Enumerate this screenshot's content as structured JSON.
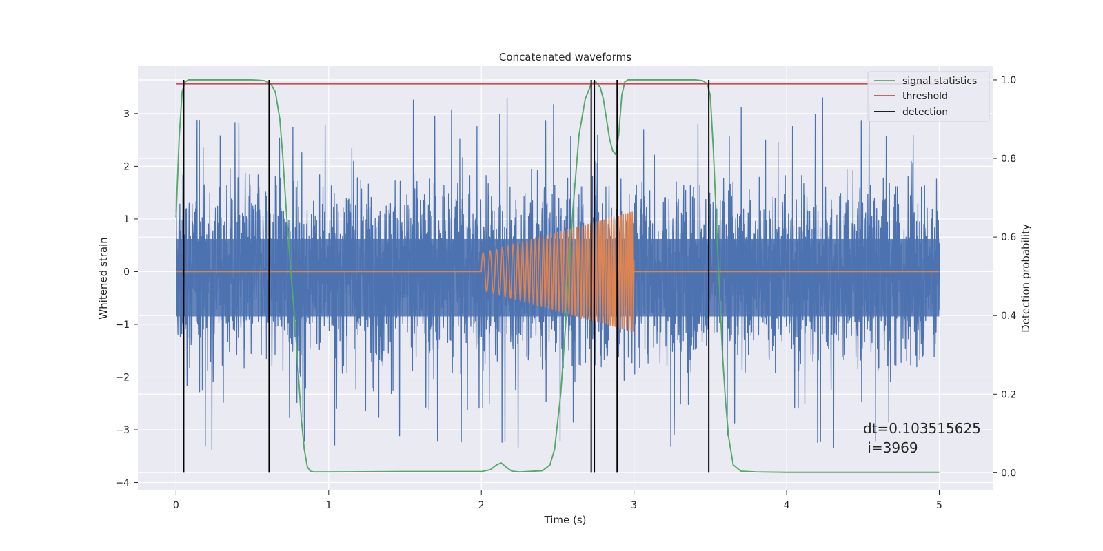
{
  "chart_data": {
    "type": "line",
    "title": "Concatenated waveforms",
    "xlabel": "Time (s)",
    "ylabel": "Whitened strain",
    "y2label": "Detection probability",
    "xlim": [
      -0.25,
      5.35
    ],
    "ylim": [
      -4.15,
      3.9
    ],
    "y2lim": [
      -0.045,
      1.035
    ],
    "xticks": [
      0,
      1,
      2,
      3,
      4,
      5
    ],
    "yticks": [
      -4,
      -3,
      -2,
      -1,
      0,
      1,
      2,
      3
    ],
    "y2ticks": [
      0.0,
      0.2,
      0.4,
      0.6,
      0.8,
      1.0
    ],
    "xtick_labels": [
      "0",
      "1",
      "2",
      "3",
      "4",
      "5"
    ],
    "ytick_labels": [
      "−4",
      "−3",
      "−2",
      "−1",
      "0",
      "1",
      "2",
      "3"
    ],
    "y2tick_labels": [
      "0.0",
      "0.2",
      "0.4",
      "0.6",
      "0.8",
      "1.0"
    ],
    "grid": true,
    "legend_position": "top-right",
    "legend": [
      {
        "name": "signal statistics",
        "color": "#55a868"
      },
      {
        "name": "threshold",
        "color": "#c44e52"
      },
      {
        "name": "detection",
        "color": "#000000"
      }
    ],
    "noise": {
      "x_range": [
        0,
        5
      ],
      "color": "#4c72b0",
      "core_band": [
        -0.85,
        0.62
      ],
      "extreme_max": 3.6,
      "extreme_min": -3.75
    },
    "chirp": {
      "x_range": [
        2.0,
        3.0
      ],
      "color": "#dd8452",
      "amplitude_start": 0.35,
      "amplitude_end": 1.15,
      "freq_start": 20,
      "freq_end": 70
    },
    "signal_statistics": {
      "color": "#55a868",
      "x": [
        0.0,
        0.02,
        0.04,
        0.06,
        0.08,
        0.1,
        0.15,
        0.3,
        0.5,
        0.58,
        0.62,
        0.65,
        0.68,
        0.7,
        0.72,
        0.75,
        0.78,
        0.8,
        0.82,
        0.84,
        0.86,
        0.88,
        0.9,
        1.0,
        1.5,
        2.0,
        2.06,
        2.1,
        2.13,
        2.16,
        2.2,
        2.25,
        2.4,
        2.45,
        2.48,
        2.52,
        2.56,
        2.6,
        2.64,
        2.68,
        2.72,
        2.75,
        2.78,
        2.8,
        2.82,
        2.84,
        2.86,
        2.88,
        2.9,
        2.92,
        2.94,
        2.96,
        3.0,
        3.2,
        3.4,
        3.45,
        3.48,
        3.5,
        3.52,
        3.55,
        3.58,
        3.6,
        3.62,
        3.65,
        3.7,
        3.8,
        4.0,
        4.5,
        5.0
      ],
      "y": [
        0.65,
        0.85,
        0.97,
        0.995,
        1.0,
        1.0,
        1.0,
        1.0,
        1.0,
        0.998,
        0.99,
        0.97,
        0.9,
        0.8,
        0.68,
        0.52,
        0.38,
        0.26,
        0.14,
        0.06,
        0.015,
        0.004,
        0.002,
        0.002,
        0.003,
        0.003,
        0.008,
        0.02,
        0.025,
        0.015,
        0.004,
        0.002,
        0.005,
        0.02,
        0.06,
        0.2,
        0.42,
        0.67,
        0.86,
        0.95,
        0.99,
        0.995,
        0.98,
        0.95,
        0.9,
        0.85,
        0.82,
        0.81,
        0.86,
        0.96,
        0.995,
        1.0,
        1.0,
        1.0,
        1.0,
        0.998,
        0.99,
        0.96,
        0.82,
        0.55,
        0.3,
        0.18,
        0.09,
        0.02,
        0.004,
        0.002,
        0.001,
        0.001,
        0.001
      ]
    },
    "threshold": {
      "value": 0.99,
      "x_range": [
        0,
        5
      ],
      "color": "#c44e52"
    },
    "detection_times": [
      0.05,
      0.61,
      2.72,
      2.74,
      2.89,
      3.49
    ],
    "detection_color": "#000000",
    "annotation": {
      "line1": "dt=0.103515625",
      "line2": " i=3969"
    }
  }
}
